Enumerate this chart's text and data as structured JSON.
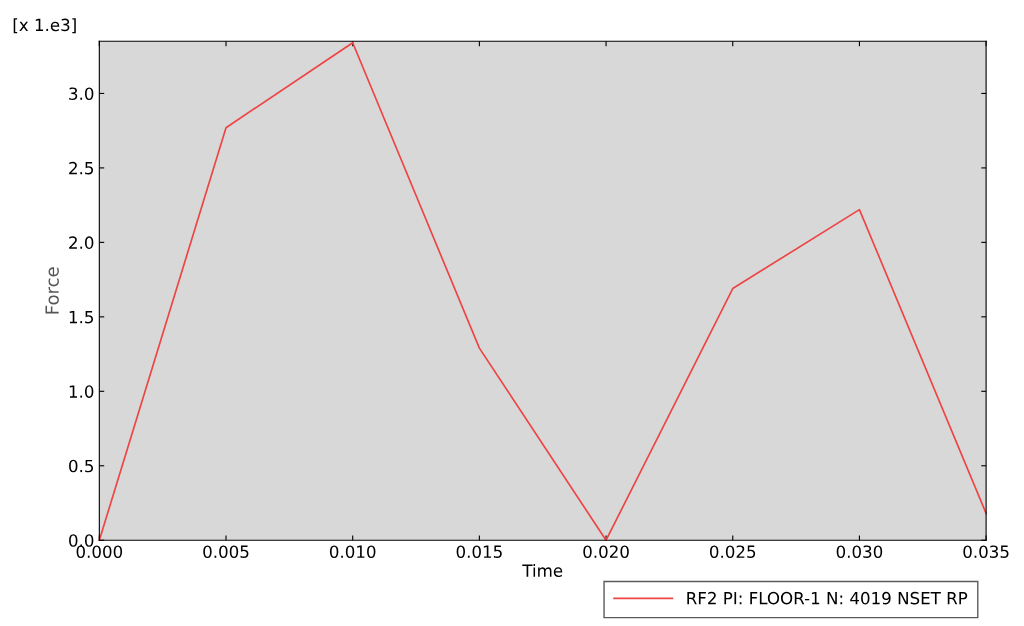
{
  "chart_data": {
    "type": "line",
    "xlabel": "Time",
    "ylabel": "Force",
    "x": [
      0.0,
      0.005,
      0.01,
      0.015,
      0.02,
      0.025,
      0.03,
      0.035
    ],
    "series": [
      {
        "name": "RF2 PI: FLOOR-1 N: 4019 NSET RP",
        "color": "#ee4444",
        "values": [
          0.0,
          2.77,
          3.34,
          1.29,
          0.0,
          1.69,
          2.22,
          0.18
        ]
      }
    ],
    "xlim": [
      0.0,
      0.035
    ],
    "xticks": [
      {
        "value": 0.0,
        "label": "0.000"
      },
      {
        "value": 0.005,
        "label": "0.005"
      },
      {
        "value": 0.01,
        "label": "0.010"
      },
      {
        "value": 0.015,
        "label": "0.015"
      },
      {
        "value": 0.02,
        "label": "0.020"
      },
      {
        "value": 0.025,
        "label": "0.025"
      },
      {
        "value": 0.03,
        "label": "0.030"
      },
      {
        "value": 0.035,
        "label": "0.035"
      }
    ],
    "ylim": [
      0.0,
      3.35
    ],
    "yticks": [
      {
        "value": 0.0,
        "label": "0.0"
      },
      {
        "value": 0.5,
        "label": "0.5"
      },
      {
        "value": 1.0,
        "label": "1.0"
      },
      {
        "value": 1.5,
        "label": "1.5"
      },
      {
        "value": 2.0,
        "label": "2.0"
      },
      {
        "value": 2.5,
        "label": "2.5"
      },
      {
        "value": 3.0,
        "label": "3.0"
      }
    ],
    "annotations": [
      "[x 1.e3]"
    ],
    "grid": false,
    "legend": "bottom right",
    "line_style": "solid",
    "marker": "none"
  }
}
